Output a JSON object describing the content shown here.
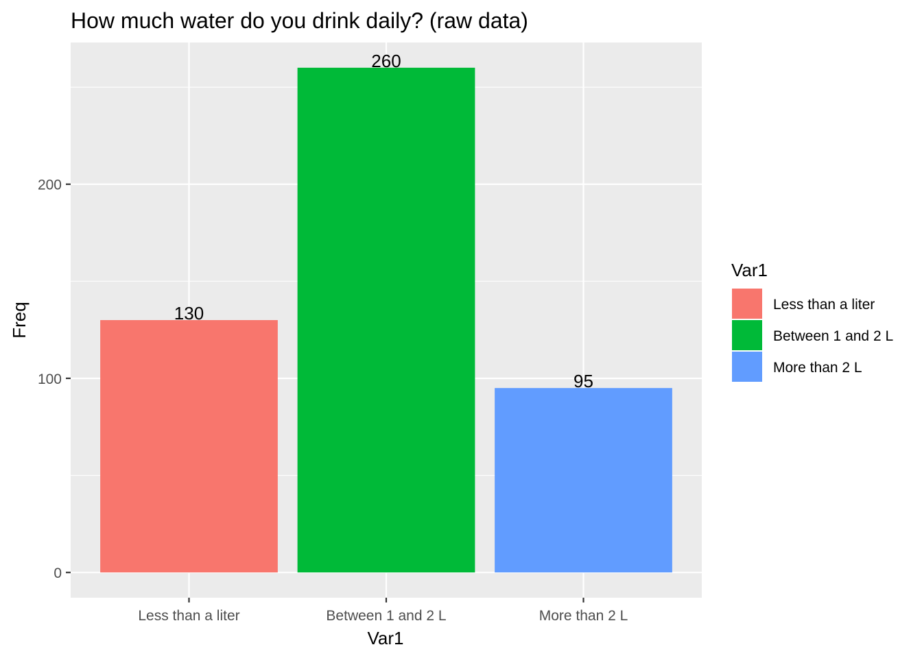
{
  "chart_data": {
    "type": "bar",
    "title": "How much water do you drink daily? (raw data)",
    "xlabel": "Var1",
    "ylabel": "Freq",
    "categories": [
      "Less than a liter",
      "Between 1 and 2 L",
      "More than 2 L"
    ],
    "values": [
      130,
      260,
      95
    ],
    "value_labels": [
      "130",
      "260",
      "95"
    ],
    "colors": [
      "#F8766D",
      "#00BA38",
      "#619CFF"
    ],
    "ylim": [
      -13,
      273
    ],
    "yticks": [
      0,
      100,
      200
    ],
    "ytick_labels": [
      "0",
      "100",
      "200"
    ],
    "grid": true,
    "legend": {
      "title": "Var1",
      "placement": "right",
      "entries": [
        "Less than a liter",
        "Between 1 and 2 L",
        "More than 2 L"
      ]
    },
    "panel_background": "#EBEBEB",
    "grid_color": "#FFFFFF"
  }
}
